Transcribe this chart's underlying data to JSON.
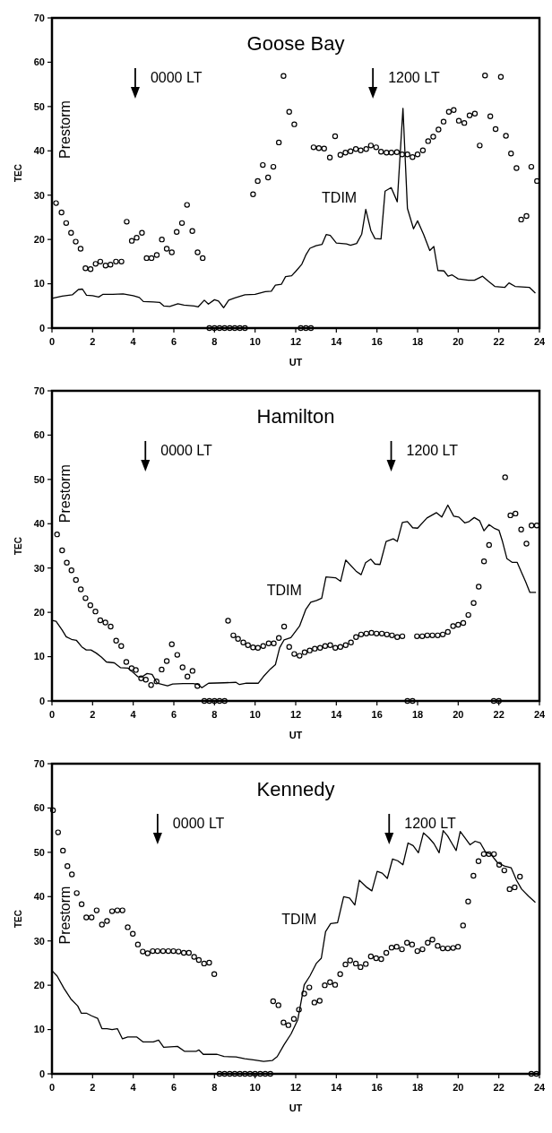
{
  "chart_data": [
    {
      "type": "line",
      "title": "Goose Bay",
      "xlabel": "UT",
      "ylabel": "TEC",
      "xlim": [
        0,
        24
      ],
      "xticks": [
        0,
        2,
        4,
        6,
        8,
        10,
        12,
        14,
        16,
        18,
        20,
        22,
        24
      ],
      "ylim": [
        0,
        70
      ],
      "yticks": [
        0,
        10,
        20,
        30,
        40,
        50,
        60,
        70
      ],
      "grid": false,
      "legend": false,
      "annotations": [
        "Prestorm"
      ],
      "ref_lines": [
        {
          "axis": "x",
          "value": 4.1,
          "label": "0000 LT"
        },
        {
          "axis": "x",
          "value": 15.8,
          "label": "1200 LT"
        }
      ],
      "series": [
        {
          "type": "scatter",
          "color": "#000000",
          "marker": "circle",
          "x": [
            0.2,
            0.47,
            0.7,
            0.94,
            1.17,
            1.41,
            1.65,
            1.9,
            2.15,
            2.38,
            2.64,
            2.88,
            3.15,
            3.42,
            3.68,
            3.93,
            4.17,
            4.43,
            4.66,
            4.9,
            5.16,
            5.41,
            5.65,
            5.9,
            6.14,
            6.4,
            6.65,
            6.91,
            7.17,
            7.42,
            7.75,
            8.0,
            8.25,
            8.5,
            8.75,
            9.0,
            9.25,
            9.5,
            9.9,
            10.13,
            10.38,
            10.64,
            10.9,
            11.17,
            11.4,
            11.68,
            11.93,
            12.25,
            12.5,
            12.75,
            12.88,
            13.14,
            13.4,
            13.68,
            13.94,
            14.2,
            14.45,
            14.7,
            14.96,
            15.2,
            15.47,
            15.7,
            15.96,
            16.2,
            16.47,
            16.71,
            16.98,
            17.24,
            17.5,
            17.75,
            18.0,
            18.26,
            18.52,
            18.77,
            19.03,
            19.28,
            19.54,
            19.78,
            20.03,
            20.3,
            20.56,
            20.82,
            21.06,
            21.32,
            21.58,
            21.84,
            22.1,
            22.35,
            22.6,
            22.87,
            23.1,
            23.36,
            23.6,
            23.88
          ],
          "values": [
            28.2,
            26.1,
            23.7,
            21.5,
            19.5,
            17.9,
            13.5,
            13.3,
            14.5,
            15.0,
            14.1,
            14.3,
            15.0,
            15.0,
            24.0,
            19.7,
            20.4,
            21.5,
            15.8,
            15.8,
            16.5,
            20.0,
            17.9,
            17.1,
            21.7,
            23.7,
            27.8,
            21.9,
            17.1,
            15.8,
            0,
            0,
            0,
            0,
            0,
            0,
            0,
            0,
            30.2,
            33.2,
            36.8,
            34.0,
            36.4,
            41.9,
            56.9,
            48.8,
            46.0,
            0,
            0,
            0,
            40.8,
            40.6,
            40.5,
            38.5,
            43.3,
            39.1,
            39.6,
            39.9,
            40.4,
            40.1,
            40.4,
            41.2,
            40.8,
            39.8,
            39.6,
            39.6,
            39.7,
            39.2,
            39.2,
            38.6,
            39.2,
            40.1,
            42.2,
            43.2,
            44.8,
            46.6,
            48.8,
            49.2,
            46.8,
            46.3,
            48.0,
            48.4,
            41.2,
            57.0,
            47.8,
            44.9,
            56.7,
            43.4,
            39.4,
            36.1,
            24.5,
            25.3,
            36.4,
            33.2
          ]
        },
        {
          "name": "TDIM",
          "color": "#000000",
          "line_style": "solid",
          "x": [
            0,
            0.5,
            1.0,
            1.3,
            1.5,
            1.7,
            2.0,
            2.3,
            2.5,
            3.0,
            3.5,
            4.0,
            4.3,
            4.5,
            5.0,
            5.3,
            5.5,
            5.8,
            6.2,
            6.5,
            7.0,
            7.2,
            7.5,
            7.7,
            8.0,
            8.2,
            8.45,
            8.7,
            9.0,
            9.5,
            10.0,
            10.5,
            10.8,
            11.0,
            11.3,
            11.5,
            11.8,
            12.0,
            12.3,
            12.5,
            12.7,
            13.0,
            13.3,
            13.5,
            13.7,
            14.0,
            14.5,
            14.7,
            15.0,
            15.25,
            15.45,
            15.7,
            15.9,
            16.2,
            16.4,
            16.7,
            17.0,
            17.28,
            17.5,
            17.8,
            18.0,
            18.3,
            18.6,
            18.8,
            19.0,
            19.3,
            19.5,
            19.7,
            20.0,
            20.5,
            20.8,
            21.2,
            21.5,
            21.8,
            22.3,
            22.5,
            22.8,
            23.5,
            23.8
          ],
          "values": [
            6.7,
            7.2,
            7.5,
            8.7,
            8.8,
            7.4,
            7.3,
            7.0,
            7.6,
            7.6,
            7.7,
            7.3,
            6.9,
            6.0,
            5.9,
            5.8,
            5.0,
            4.9,
            5.5,
            5.2,
            5.0,
            4.8,
            6.3,
            5.4,
            6.4,
            6.1,
            4.6,
            6.3,
            6.8,
            7.5,
            7.6,
            8.2,
            8.3,
            9.7,
            9.9,
            11.6,
            11.8,
            12.8,
            14.4,
            16.5,
            18.0,
            18.6,
            18.9,
            21.1,
            20.9,
            19.2,
            19.0,
            18.7,
            19.1,
            21.2,
            26.8,
            22.0,
            20.2,
            20.1,
            30.9,
            31.7,
            28.5,
            49.6,
            27.0,
            22.4,
            24.2,
            21.1,
            17.5,
            18.4,
            13.0,
            12.9,
            11.7,
            12.0,
            11.1,
            10.8,
            10.8,
            11.7,
            10.5,
            9.4,
            9.2,
            10.2,
            9.4,
            9.2,
            7.9
          ]
        }
      ]
    },
    {
      "type": "line",
      "title": "Hamilton",
      "xlabel": "UT",
      "ylabel": "TEC",
      "xlim": [
        0,
        24
      ],
      "xticks": [
        0,
        2,
        4,
        6,
        8,
        10,
        12,
        14,
        16,
        18,
        20,
        22,
        24
      ],
      "ylim": [
        0,
        70
      ],
      "yticks": [
        0,
        10,
        20,
        30,
        40,
        50,
        60,
        70
      ],
      "grid": false,
      "legend": false,
      "annotations": [
        "Prestorm"
      ],
      "ref_lines": [
        {
          "axis": "x",
          "value": 4.6,
          "label": "0000 LT"
        },
        {
          "axis": "x",
          "value": 16.7,
          "label": "1200 LT"
        }
      ],
      "series": [
        {
          "type": "scatter",
          "color": "#000000",
          "marker": "circle",
          "x": [
            0.25,
            0.5,
            0.73,
            0.96,
            1.18,
            1.42,
            1.65,
            1.89,
            2.14,
            2.38,
            2.63,
            2.89,
            3.16,
            3.41,
            3.66,
            3.92,
            4.13,
            4.39,
            4.62,
            4.88,
            5.15,
            5.4,
            5.65,
            5.9,
            6.17,
            6.43,
            6.67,
            6.92,
            7.16,
            7.5,
            7.75,
            8.0,
            8.25,
            8.5,
            8.67,
            8.93,
            9.16,
            9.42,
            9.65,
            9.9,
            10.14,
            10.4,
            10.67,
            10.92,
            11.17,
            11.43,
            11.68,
            11.93,
            12.19,
            12.44,
            12.69,
            12.94,
            13.2,
            13.45,
            13.7,
            13.95,
            14.2,
            14.46,
            14.72,
            14.97,
            15.22,
            15.48,
            15.73,
            15.98,
            16.24,
            16.49,
            16.74,
            17.0,
            17.25,
            17.5,
            17.75,
            17.97,
            18.23,
            18.48,
            18.73,
            18.99,
            19.24,
            19.49,
            19.75,
            20.0,
            20.25,
            20.5,
            20.76,
            21.01,
            21.27,
            21.52,
            21.75,
            22.0,
            22.31,
            22.57,
            22.82,
            23.1,
            23.36,
            23.61,
            23.87
          ],
          "values": [
            37.6,
            34.0,
            31.2,
            29.5,
            27.3,
            25.2,
            23.2,
            21.6,
            20.2,
            18.2,
            17.7,
            16.8,
            13.6,
            12.4,
            8.8,
            7.4,
            7.0,
            5.1,
            4.8,
            3.6,
            4.4,
            7.1,
            9.0,
            12.8,
            10.4,
            7.6,
            5.5,
            6.8,
            3.4,
            0,
            0,
            0,
            0,
            0,
            18.1,
            14.8,
            14.0,
            13.2,
            12.6,
            12.1,
            12.0,
            12.4,
            13.0,
            13.0,
            14.2,
            16.8,
            12.2,
            10.6,
            10.2,
            11.0,
            11.4,
            11.8,
            12.0,
            12.4,
            12.6,
            12.0,
            12.2,
            12.6,
            13.2,
            14.4,
            15.0,
            15.2,
            15.4,
            15.2,
            15.2,
            15.0,
            14.8,
            14.4,
            14.6,
            0,
            0,
            14.6,
            14.6,
            14.8,
            14.8,
            14.8,
            15.0,
            15.6,
            16.9,
            17.2,
            17.6,
            19.4,
            22.1,
            25.8,
            31.5,
            35.2,
            0,
            0,
            50.5,
            41.9,
            42.3,
            38.7,
            35.5,
            39.6,
            39.6
          ]
        },
        {
          "name": "TDIM",
          "color": "#000000",
          "line_style": "solid",
          "x": [
            0,
            0.2,
            0.5,
            0.7,
            0.96,
            1.2,
            1.47,
            1.69,
            1.92,
            2.18,
            2.43,
            2.68,
            3.07,
            3.38,
            3.75,
            4.0,
            4.22,
            4.42,
            4.68,
            4.93,
            5.18,
            5.69,
            5.94,
            6.45,
            6.95,
            7.2,
            7.38,
            7.71,
            8.47,
            9.06,
            9.23,
            9.57,
            10.16,
            10.41,
            10.75,
            11.0,
            11.21,
            11.43,
            11.76,
            12.19,
            12.49,
            12.74,
            13.03,
            13.28,
            13.49,
            13.96,
            14.21,
            14.46,
            14.97,
            15.22,
            15.44,
            15.7,
            15.9,
            16.15,
            16.45,
            16.8,
            17.0,
            17.25,
            17.5,
            17.76,
            18.0,
            18.46,
            18.93,
            19.19,
            19.49,
            19.78,
            20.03,
            20.32,
            20.54,
            20.79,
            21.05,
            21.27,
            21.52,
            21.8,
            22.01,
            22.18,
            22.4,
            22.65,
            22.9,
            23.12,
            23.32,
            23.53,
            23.83
          ],
          "values": [
            18.2,
            18.0,
            16.0,
            14.5,
            13.9,
            13.7,
            12.2,
            11.5,
            11.5,
            10.8,
            9.9,
            8.8,
            8.6,
            7.5,
            7.4,
            6.4,
            5.5,
            5.4,
            6.2,
            6.0,
            4.0,
            3.4,
            3.8,
            3.9,
            3.9,
            3.7,
            3.0,
            4.0,
            4.1,
            4.2,
            3.7,
            4.0,
            4.0,
            5.5,
            7.2,
            8.2,
            12.0,
            13.8,
            14.3,
            16.9,
            20.6,
            22.3,
            22.7,
            23.2,
            28.0,
            27.8,
            27.0,
            31.8,
            29.3,
            28.5,
            31.2,
            32.0,
            30.9,
            30.8,
            36.0,
            36.6,
            36.0,
            40.3,
            40.5,
            39.1,
            39.0,
            41.3,
            42.5,
            41.5,
            44.2,
            41.7,
            41.5,
            40.2,
            40.5,
            41.4,
            40.7,
            38.4,
            39.8,
            38.9,
            38.5,
            36.0,
            32.1,
            31.3,
            31.3,
            29.0,
            26.9,
            24.5,
            24.5
          ]
        }
      ]
    },
    {
      "type": "line",
      "title": "Kennedy",
      "xlabel": "UT",
      "ylabel": "TEC",
      "xlim": [
        0,
        24
      ],
      "xticks": [
        0,
        2,
        4,
        6,
        8,
        10,
        12,
        14,
        16,
        18,
        20,
        22,
        24
      ],
      "ylim": [
        0,
        70
      ],
      "yticks": [
        0,
        10,
        20,
        30,
        40,
        50,
        60,
        70
      ],
      "grid": false,
      "legend": false,
      "annotations": [
        "Prestorm"
      ],
      "ref_lines": [
        {
          "axis": "x",
          "value": 5.2,
          "label": "0000 LT"
        },
        {
          "axis": "x",
          "value": 16.6,
          "label": "1200 LT"
        }
      ],
      "series": [
        {
          "type": "scatter",
          "color": "#000000",
          "marker": "circle",
          "x": [
            0.05,
            0.3,
            0.54,
            0.76,
            0.98,
            1.22,
            1.46,
            1.69,
            1.95,
            2.2,
            2.46,
            2.71,
            2.96,
            3.22,
            3.47,
            3.73,
            3.98,
            4.23,
            4.47,
            4.71,
            4.96,
            5.2,
            5.47,
            5.73,
            5.98,
            6.23,
            6.49,
            6.74,
            7.0,
            7.23,
            7.49,
            7.74,
            7.99,
            8.25,
            8.5,
            8.75,
            9.0,
            9.25,
            9.5,
            9.75,
            10.0,
            10.25,
            10.5,
            10.75,
            10.89,
            11.15,
            11.4,
            11.64,
            11.91,
            12.16,
            12.42,
            12.67,
            12.92,
            13.18,
            13.43,
            13.69,
            13.94,
            14.19,
            14.45,
            14.68,
            14.96,
            15.19,
            15.45,
            15.7,
            15.96,
            16.21,
            16.46,
            16.72,
            16.97,
            17.23,
            17.48,
            17.73,
            17.99,
            18.24,
            18.5,
            18.73,
            18.99,
            19.24,
            19.49,
            19.75,
            19.99,
            20.24,
            20.49,
            20.75,
            21.0,
            21.26,
            21.51,
            21.76,
            22.02,
            22.27,
            22.53,
            22.78,
            23.04,
            23.6,
            23.85
          ],
          "values": [
            59.5,
            54.5,
            50.4,
            46.9,
            45.0,
            40.8,
            38.3,
            35.3,
            35.3,
            36.9,
            33.7,
            34.5,
            36.7,
            36.9,
            36.9,
            33.1,
            31.6,
            29.2,
            27.6,
            27.2,
            27.7,
            27.7,
            27.7,
            27.7,
            27.7,
            27.6,
            27.3,
            27.3,
            26.4,
            25.7,
            24.9,
            25.1,
            22.5,
            0,
            0,
            0,
            0,
            0,
            0,
            0,
            0,
            0,
            0,
            0,
            16.4,
            15.5,
            11.6,
            11.0,
            12.4,
            14.5,
            18.1,
            19.5,
            16.1,
            16.5,
            20.0,
            20.7,
            20.1,
            22.5,
            24.7,
            25.6,
            24.9,
            24.1,
            24.8,
            26.5,
            26.1,
            25.9,
            27.3,
            28.5,
            28.7,
            28.1,
            29.6,
            29.2,
            27.7,
            28.1,
            29.6,
            30.3,
            28.9,
            28.3,
            28.3,
            28.4,
            28.7,
            33.5,
            38.9,
            44.7,
            48.0,
            49.6,
            49.6,
            49.6,
            47.2,
            45.9,
            41.7,
            42.1,
            44.5,
            0,
            0
          ]
        },
        {
          "name": "TDIM",
          "color": "#000000",
          "line_style": "solid",
          "x": [
            0,
            0.25,
            0.59,
            0.93,
            1.27,
            1.44,
            1.69,
            1.95,
            2.25,
            2.46,
            2.71,
            2.96,
            3.22,
            3.47,
            3.73,
            4.18,
            4.49,
            4.99,
            5.25,
            5.5,
            6.18,
            6.52,
            7.11,
            7.23,
            7.45,
            8.13,
            8.47,
            9.06,
            9.49,
            9.99,
            10.42,
            10.84,
            11.09,
            11.43,
            11.77,
            12.1,
            12.42,
            12.7,
            13.01,
            13.26,
            13.47,
            13.72,
            14.06,
            14.36,
            14.65,
            14.91,
            15.13,
            15.5,
            15.75,
            16.01,
            16.26,
            16.51,
            16.77,
            17.02,
            17.28,
            17.53,
            17.78,
            18.04,
            18.29,
            18.55,
            18.8,
            19.06,
            19.26,
            19.48,
            19.68,
            19.9,
            20.1,
            20.33,
            20.58,
            20.83,
            21.09,
            21.34,
            21.6,
            21.93,
            22.27,
            22.61,
            22.87,
            23.12,
            23.46,
            23.8
          ],
          "values": [
            23.3,
            22.1,
            19.3,
            16.9,
            15.3,
            13.7,
            13.7,
            13.1,
            12.5,
            10.2,
            10.2,
            10.0,
            10.2,
            7.9,
            8.3,
            8.3,
            7.2,
            7.2,
            7.6,
            6.0,
            6.2,
            5.1,
            5.1,
            5.4,
            4.4,
            4.4,
            3.9,
            3.8,
            3.4,
            3.1,
            2.8,
            3.0,
            3.9,
            6.6,
            9.0,
            12.2,
            20.1,
            22.1,
            24.9,
            26.1,
            32.1,
            33.9,
            34.1,
            40.0,
            39.7,
            38.1,
            43.7,
            42.1,
            41.3,
            45.7,
            45.3,
            44.1,
            48.5,
            48.1,
            47.2,
            52.1,
            51.5,
            49.9,
            54.4,
            53.3,
            52.0,
            49.9,
            54.9,
            53.7,
            52.1,
            50.4,
            54.7,
            53.3,
            51.7,
            52.5,
            52.1,
            50.1,
            49.6,
            47.7,
            46.9,
            46.5,
            43.7,
            41.7,
            40.1,
            38.7
          ]
        }
      ]
    }
  ]
}
